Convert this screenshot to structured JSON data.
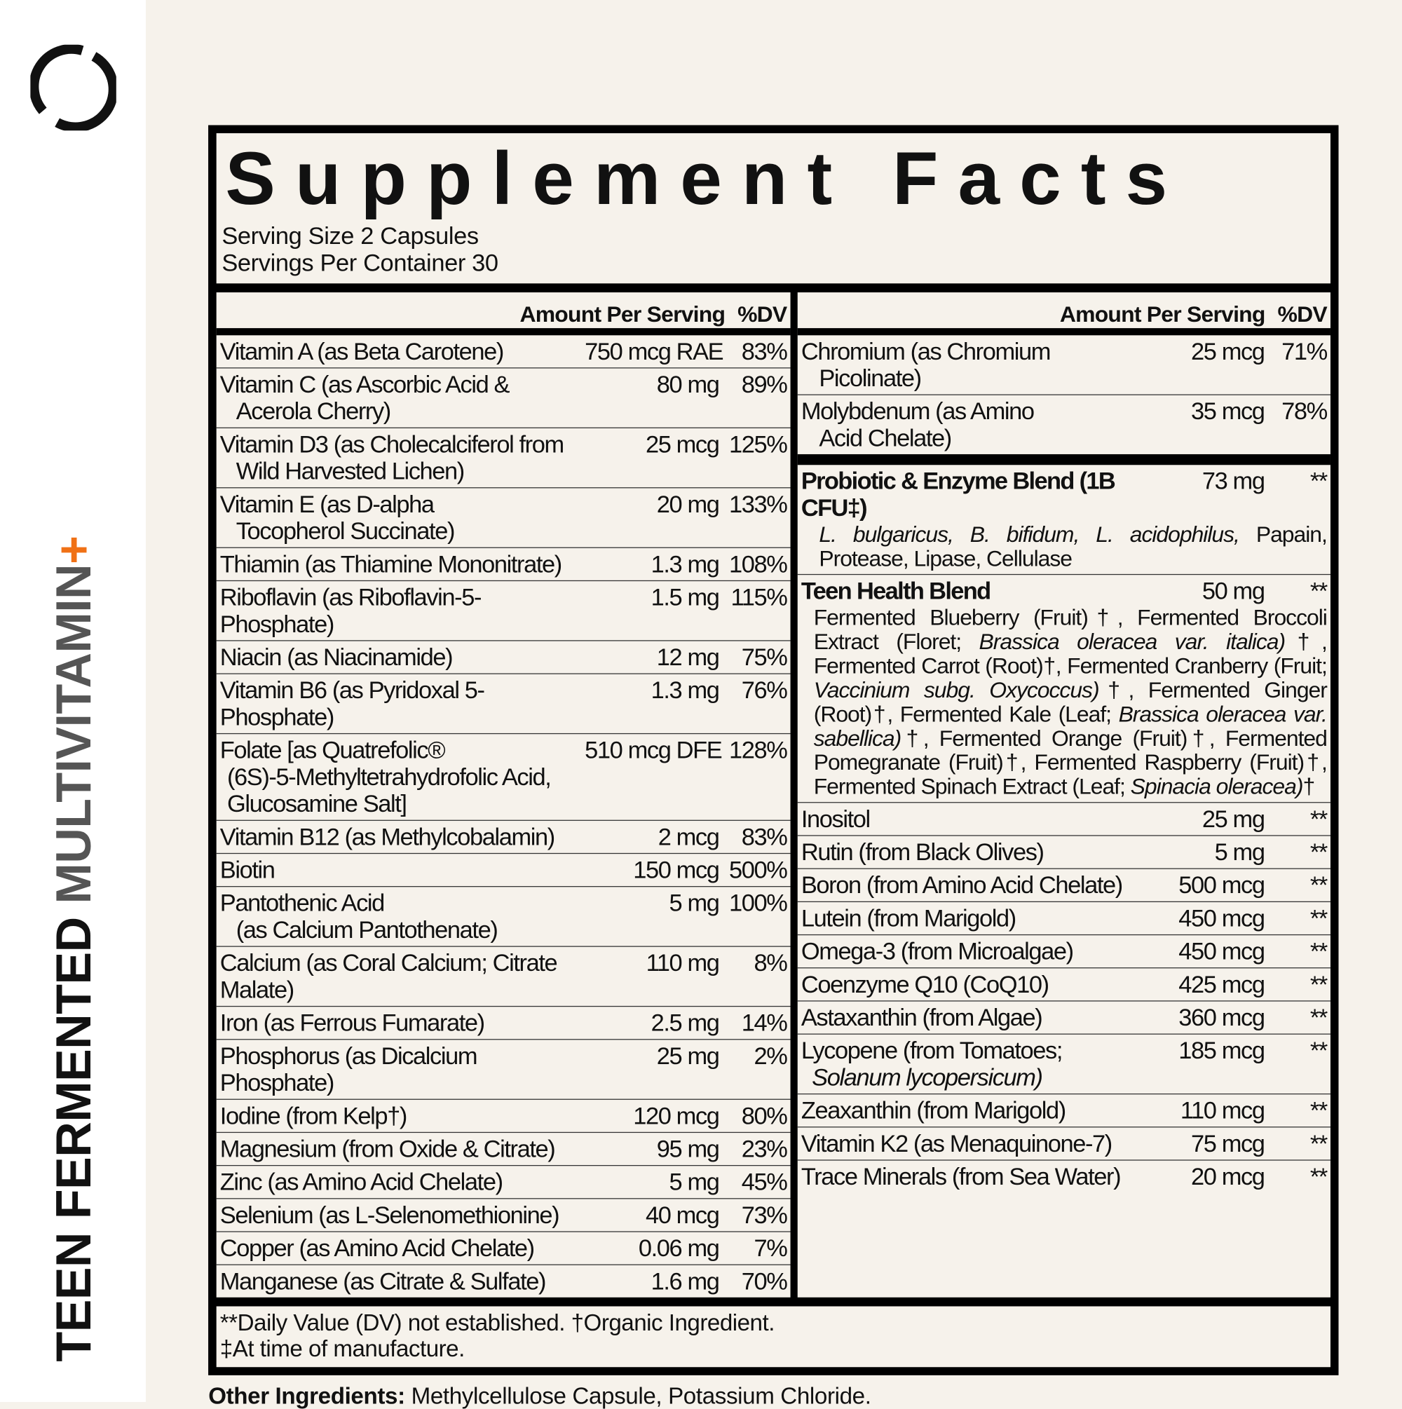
{
  "brand": {
    "logo": "circle-logo",
    "product_line1": "TEEN FERMENTED",
    "product_line2": "MULTIVITAMIN",
    "product_plus": "+",
    "accent_color": "#f07116"
  },
  "panel": {
    "title": "Supplement Facts",
    "serving_size": "Serving Size 2 Capsules",
    "servings_per_container": "Servings Per Container 30",
    "header_amount": "Amount Per Serving",
    "header_dv": "%DV"
  },
  "left_rows": [
    {
      "name": "Vitamin A (as Beta Carotene)",
      "cont": "",
      "amount": "750 mcg RAE",
      "dv": "83%"
    },
    {
      "name": "Vitamin C (as Ascorbic Acid &",
      "cont": "Acerola Cherry)",
      "amount": "80 mg",
      "dv": "89%"
    },
    {
      "name": "Vitamin D3 (as Cholecalciferol from",
      "cont": "Wild Harvested Lichen)",
      "amount": "25 mcg",
      "dv": "125%"
    },
    {
      "name": "Vitamin E (as D-alpha",
      "cont": "Tocopherol Succinate)",
      "amount": "20 mg",
      "dv": "133%"
    },
    {
      "name": "Thiamin (as Thiamine Mononitrate)",
      "cont": "",
      "amount": "1.3 mg",
      "dv": "108%"
    },
    {
      "name": "Riboflavin (as Riboflavin-5-Phosphate)",
      "cont": "",
      "amount": "1.5 mg",
      "dv": "115%"
    },
    {
      "name": "Niacin (as Niacinamide)",
      "cont": "",
      "amount": "12 mg",
      "dv": "75%"
    },
    {
      "name": "Vitamin B6 (as Pyridoxal 5-Phosphate)",
      "cont": "",
      "amount": "1.3 mg",
      "dv": "76%"
    },
    {
      "name": "Folate [as Quatrefolic®",
      "cont": "(6S)-5-Methyltetrahydrofolic Acid, Glucosamine Salt]",
      "amount": "510 mcg DFE",
      "dv": "128%"
    },
    {
      "name": "Vitamin B12 (as Methylcobalamin)",
      "cont": "",
      "amount": "2 mcg",
      "dv": "83%"
    },
    {
      "name": "Biotin",
      "cont": "",
      "amount": "150 mcg",
      "dv": "500%"
    },
    {
      "name": "Pantothenic Acid",
      "cont": "(as Calcium Pantothenate)",
      "amount": "5 mg",
      "dv": "100%"
    },
    {
      "name": "Calcium (as Coral Calcium; Citrate Malate)",
      "cont": "",
      "amount": "110 mg",
      "dv": "8%"
    },
    {
      "name": "Iron (as Ferrous Fumarate)",
      "cont": "",
      "amount": "2.5 mg",
      "dv": "14%"
    },
    {
      "name": "Phosphorus (as Dicalcium Phosphate)",
      "cont": "",
      "amount": "25 mg",
      "dv": "2%"
    },
    {
      "name": "Iodine (from Kelp†)",
      "cont": "",
      "amount": "120 mcg",
      "dv": "80%"
    },
    {
      "name": "Magnesium (from Oxide & Citrate)",
      "cont": "",
      "amount": "95 mg",
      "dv": "23%"
    },
    {
      "name": "Zinc (as Amino Acid Chelate)",
      "cont": "",
      "amount": "5 mg",
      "dv": "45%"
    },
    {
      "name": "Selenium (as L-Selenomethionine)",
      "cont": "",
      "amount": "40 mcg",
      "dv": "73%"
    },
    {
      "name": "Copper (as Amino Acid Chelate)",
      "cont": "",
      "amount": "0.06 mg",
      "dv": "7%"
    },
    {
      "name": "Manganese (as Citrate & Sulfate)",
      "cont": "",
      "amount": "1.6 mg",
      "dv": "70%"
    }
  ],
  "right_top_rows": [
    {
      "name": "Chromium (as Chromium",
      "cont": "Picolinate)",
      "amount": "25 mcg",
      "dv": "71%"
    },
    {
      "name": "Molybdenum (as Amino",
      "cont": "Acid Chelate)",
      "amount": "35 mcg",
      "dv": "78%"
    }
  ],
  "probiotic_blend": {
    "name": "Probiotic & Enzyme Blend (1B CFU‡)",
    "amount": "73 mg",
    "dv": "**",
    "segments": [
      {
        "text": "L. bulgaricus, B. bifidum, L. acidophilus,",
        "italic": true
      },
      {
        "text": " Papain, Protease, Lipase, Cellulase",
        "italic": false
      }
    ]
  },
  "teen_blend": {
    "name": "Teen Health Blend",
    "amount": "50 mg",
    "dv": "**",
    "segments": [
      {
        "text": "Fermented Blueberry (Fruit)†, Fermented Broccoli Extract (Floret; ",
        "italic": false
      },
      {
        "text": "Brassica oleracea var. italica)",
        "italic": true
      },
      {
        "text": "†, Fermented Carrot (Root)†, Fermented Cranberry (Fruit; ",
        "italic": false
      },
      {
        "text": "Vaccinium subg. Oxycoccus)",
        "italic": true
      },
      {
        "text": "†, Fermented Ginger (Root)†, Fermented Kale (Leaf; ",
        "italic": false
      },
      {
        "text": "Brassica oleracea var. sabellica)",
        "italic": true
      },
      {
        "text": "†, Fermented Orange (Fruit)†, Fermented Pomegranate (Fruit)†, Fermented Raspberry (Fruit)†, Fermented Spinach Extract (Leaf; ",
        "italic": false
      },
      {
        "text": "Spinacia oleracea)",
        "italic": true
      },
      {
        "text": "†",
        "italic": false
      }
    ]
  },
  "right_bottom_rows": [
    {
      "name": "Inositol",
      "cont": "",
      "amount": "25 mg",
      "dv": "**"
    },
    {
      "name": "Rutin (from Black Olives)",
      "cont": "",
      "amount": "5 mg",
      "dv": "**"
    },
    {
      "name": "Boron (from Amino Acid Chelate)",
      "cont": "",
      "amount": "500 mcg",
      "dv": "**"
    },
    {
      "name": "Lutein (from Marigold)",
      "cont": "",
      "amount": "450 mcg",
      "dv": "**"
    },
    {
      "name": "Omega-3 (from Microalgae)",
      "cont": "",
      "amount": "450 mcg",
      "dv": "**"
    },
    {
      "name": "Coenzyme Q10 (CoQ10)",
      "cont": "",
      "amount": "425 mcg",
      "dv": "**"
    },
    {
      "name": "Astaxanthin (from Algae)",
      "cont": "",
      "amount": "360 mcg",
      "dv": "**"
    },
    {
      "name": "Lycopene (from Tomatoes;",
      "cont": "Solanum lycopersicum)",
      "amount": "185 mcg",
      "dv": "**"
    },
    {
      "name": "Zeaxanthin (from Marigold)",
      "cont": "",
      "amount": "110 mcg",
      "dv": "**"
    },
    {
      "name": "Vitamin K2 (as Menaquinone-7)",
      "cont": "",
      "amount": "75 mcg",
      "dv": "**"
    },
    {
      "name": "Trace Minerals (from Sea Water)",
      "cont": "",
      "amount": "20 mcg",
      "dv": "**"
    }
  ],
  "footnotes": {
    "line1": "**Daily Value (DV) not established. †Organic Ingredient.",
    "line2": "‡At time of manufacture."
  },
  "other_ingredients": {
    "label": "Other Ingredients:",
    "value": " Methylcellulose Capsule, Potassium Chloride."
  }
}
